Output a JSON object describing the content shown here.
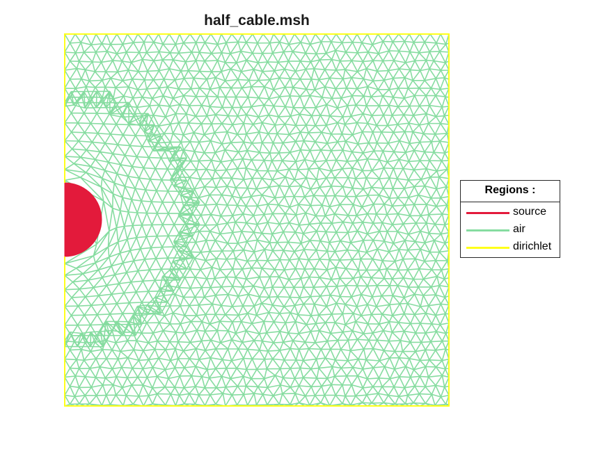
{
  "figure": {
    "title": "half_cable.msh"
  },
  "legend": {
    "title": "Regions :",
    "entries": [
      {
        "label": "source",
        "color": "#e31a3b"
      },
      {
        "label": "air",
        "color": "#86dca0"
      },
      {
        "label": "dirichlet",
        "color": "#ffff1a"
      }
    ]
  },
  "regions": {
    "source_color": "#e31a3b",
    "air_color": "#86dca0",
    "dirichlet_color": "#ffff1a"
  }
}
